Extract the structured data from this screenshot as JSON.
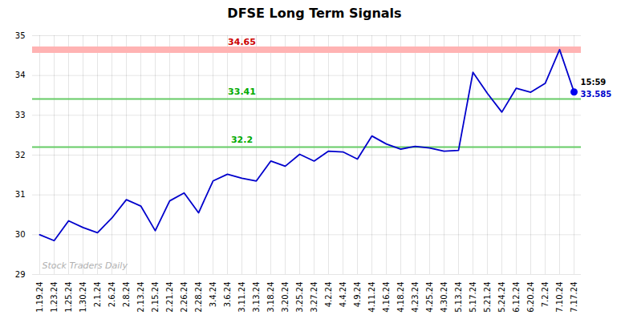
{
  "chart_data": {
    "type": "line",
    "title": "DFSE Long Term Signals",
    "categories": [
      "1.19.24",
      "1.23.24",
      "1.25.24",
      "1.30.24",
      "2.1.24",
      "2.6.24",
      "2.8.24",
      "2.13.24",
      "2.15.24",
      "2.21.24",
      "2.26.24",
      "2.28.24",
      "3.4.24",
      "3.6.24",
      "3.11.24",
      "3.13.24",
      "3.18.24",
      "3.20.24",
      "3.25.24",
      "3.27.24",
      "4.2.24",
      "4.4.24",
      "4.9.24",
      "4.11.24",
      "4.16.24",
      "4.18.24",
      "4.23.24",
      "4.25.24",
      "4.30.24",
      "5.13.24",
      "5.17.24",
      "5.21.24",
      "5.24.24",
      "6.12.24",
      "6.20.24",
      "7.2.24",
      "7.10.24",
      "7.17.24"
    ],
    "values": [
      30.0,
      29.85,
      30.35,
      30.18,
      30.05,
      30.42,
      30.88,
      30.72,
      30.1,
      30.85,
      31.05,
      30.55,
      31.35,
      31.52,
      31.42,
      31.35,
      31.85,
      31.72,
      32.02,
      31.85,
      32.1,
      32.08,
      31.9,
      32.48,
      32.28,
      32.15,
      32.22,
      32.18,
      32.1,
      32.12,
      34.08,
      33.55,
      33.08,
      33.68,
      33.58,
      33.8,
      34.65,
      33.585
    ],
    "color": "#0000cc",
    "last_point_color": "#0000ee",
    "hlines": [
      {
        "value": 34.65,
        "color": "#ffb3b3",
        "label": "34.65",
        "label_color": "#cc0000"
      },
      {
        "value": 33.41,
        "color": "#66cc66",
        "label": "33.41",
        "label_color": "#00aa00"
      },
      {
        "value": 32.2,
        "color": "#66cc66",
        "label": "32.2",
        "label_color": "#00aa00"
      }
    ],
    "annotations": [
      {
        "text": "15:59",
        "color": "#000000"
      },
      {
        "text": "33.585",
        "color": "#0000cc"
      },
      {
        "text": "Stock Traders Daily",
        "color": "#b0b0b0"
      }
    ],
    "ylim": [
      29,
      35
    ],
    "yticks": [
      29,
      30,
      31,
      32,
      33,
      34,
      35
    ],
    "grid": true
  }
}
